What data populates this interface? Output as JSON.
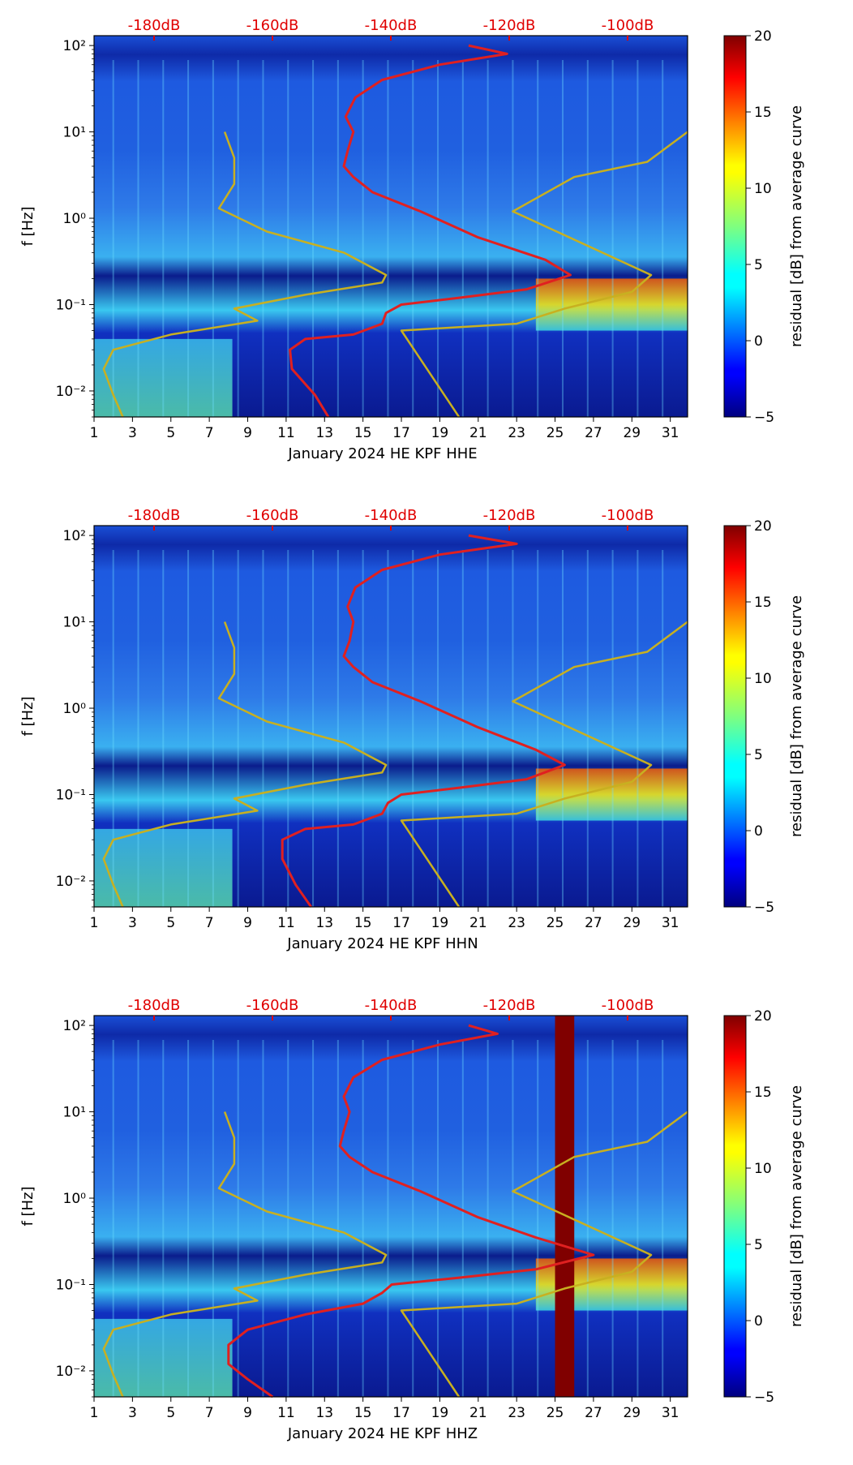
{
  "chart_data": [
    {
      "type": "heatmap",
      "title": "",
      "xlabel": "January 2024 HE KPF  HHE",
      "ylabel": "f [Hz]",
      "x_ticks": [
        "1",
        "3",
        "5",
        "7",
        "9",
        "11",
        "13",
        "15",
        "17",
        "19",
        "21",
        "23",
        "25",
        "27",
        "29",
        "31"
      ],
      "xlim": [
        1,
        31.9
      ],
      "y_ticks": [
        "10⁻²",
        "10⁻¹",
        "10⁰",
        "10¹",
        "10²"
      ],
      "ylim": [
        0.005,
        130
      ],
      "db_ticks": [
        "-180dB",
        "-160dB",
        "-140dB",
        "-120dB",
        "-100dB"
      ],
      "colorbar": {
        "label": "residual [dB] from average curve",
        "ticks": [
          "20",
          "15",
          "10",
          "5",
          "0",
          "−5"
        ],
        "range": [
          -5,
          20
        ]
      },
      "series": [
        {
          "name": "percentile curve",
          "color": "#e02020",
          "points": [
            [
              13.2,
              0.005
            ],
            [
              12.5,
              0.009
            ],
            [
              11.3,
              0.018
            ],
            [
              11.2,
              0.03
            ],
            [
              12,
              0.04
            ],
            [
              14.5,
              0.045
            ],
            [
              16,
              0.06
            ],
            [
              16.2,
              0.08
            ],
            [
              17,
              0.1
            ],
            [
              20,
              0.12
            ],
            [
              23.5,
              0.15
            ],
            [
              25.8,
              0.22
            ],
            [
              24.5,
              0.33
            ],
            [
              21,
              0.6
            ],
            [
              18,
              1.2
            ],
            [
              15.5,
              2
            ],
            [
              14.5,
              3
            ],
            [
              14,
              4
            ],
            [
              14.2,
              6
            ],
            [
              14.5,
              10
            ],
            [
              14.1,
              15
            ],
            [
              14.6,
              25
            ],
            [
              16,
              40
            ],
            [
              19,
              60
            ],
            [
              22.5,
              80
            ],
            [
              20.5,
              100
            ]
          ]
        },
        {
          "name": "NLNM",
          "color": "#c8b020",
          "points": [
            [
              2.5,
              0.005
            ],
            [
              2,
              0.009
            ],
            [
              1.5,
              0.018
            ],
            [
              2,
              0.03
            ],
            [
              5,
              0.045
            ],
            [
              9.5,
              0.065
            ],
            [
              8.3,
              0.09
            ],
            [
              12,
              0.13
            ],
            [
              16,
              0.18
            ],
            [
              16.2,
              0.22
            ],
            [
              14,
              0.4
            ],
            [
              10,
              0.7
            ],
            [
              7.5,
              1.3
            ],
            [
              8.3,
              2.5
            ],
            [
              8.3,
              5
            ],
            [
              7.8,
              10
            ]
          ]
        },
        {
          "name": "NHNM",
          "color": "#c8b020",
          "points": [
            [
              20,
              0.005
            ],
            [
              17,
              0.05
            ],
            [
              23,
              0.06
            ],
            [
              25.5,
              0.09
            ],
            [
              29,
              0.14
            ],
            [
              30,
              0.22
            ],
            [
              22.8,
              1.2
            ],
            [
              26,
              3
            ],
            [
              29.8,
              4.5
            ],
            [
              31.9,
              10
            ]
          ]
        }
      ]
    },
    {
      "type": "heatmap",
      "title": "",
      "xlabel": "January 2024 HE KPF  HHN",
      "ylabel": "f [Hz]",
      "x_ticks": [
        "1",
        "3",
        "5",
        "7",
        "9",
        "11",
        "13",
        "15",
        "17",
        "19",
        "21",
        "23",
        "25",
        "27",
        "29",
        "31"
      ],
      "xlim": [
        1,
        31.9
      ],
      "y_ticks": [
        "10⁻²",
        "10⁻¹",
        "10⁰",
        "10¹",
        "10²"
      ],
      "ylim": [
        0.005,
        130
      ],
      "db_ticks": [
        "-180dB",
        "-160dB",
        "-140dB",
        "-120dB",
        "-100dB"
      ],
      "colorbar": {
        "label": "residual [dB] from average curve",
        "ticks": [
          "20",
          "15",
          "10",
          "5",
          "0",
          "−5"
        ],
        "range": [
          -5,
          20
        ]
      },
      "series": [
        {
          "name": "percentile curve",
          "color": "#e02020",
          "points": [
            [
              12.3,
              0.005
            ],
            [
              11.5,
              0.009
            ],
            [
              10.8,
              0.018
            ],
            [
              10.8,
              0.03
            ],
            [
              12,
              0.04
            ],
            [
              14.5,
              0.045
            ],
            [
              16,
              0.06
            ],
            [
              16.3,
              0.08
            ],
            [
              17,
              0.1
            ],
            [
              20,
              0.12
            ],
            [
              23.5,
              0.15
            ],
            [
              25.5,
              0.22
            ],
            [
              24,
              0.33
            ],
            [
              21,
              0.6
            ],
            [
              18,
              1.2
            ],
            [
              15.5,
              2
            ],
            [
              14.5,
              3
            ],
            [
              14,
              4
            ],
            [
              14.3,
              6
            ],
            [
              14.5,
              10
            ],
            [
              14.2,
              15
            ],
            [
              14.6,
              25
            ],
            [
              16,
              40
            ],
            [
              19,
              60
            ],
            [
              23,
              80
            ],
            [
              20.5,
              100
            ]
          ]
        },
        {
          "name": "NLNM",
          "color": "#c8b020",
          "points": [
            [
              2.5,
              0.005
            ],
            [
              2,
              0.009
            ],
            [
              1.5,
              0.018
            ],
            [
              2,
              0.03
            ],
            [
              5,
              0.045
            ],
            [
              9.5,
              0.065
            ],
            [
              8.3,
              0.09
            ],
            [
              12,
              0.13
            ],
            [
              16,
              0.18
            ],
            [
              16.2,
              0.22
            ],
            [
              14,
              0.4
            ],
            [
              10,
              0.7
            ],
            [
              7.5,
              1.3
            ],
            [
              8.3,
              2.5
            ],
            [
              8.3,
              5
            ],
            [
              7.8,
              10
            ]
          ]
        },
        {
          "name": "NHNM",
          "color": "#c8b020",
          "points": [
            [
              20,
              0.005
            ],
            [
              17,
              0.05
            ],
            [
              23,
              0.06
            ],
            [
              25.5,
              0.09
            ],
            [
              29,
              0.14
            ],
            [
              30,
              0.22
            ],
            [
              22.8,
              1.2
            ],
            [
              26,
              3
            ],
            [
              29.8,
              4.5
            ],
            [
              31.9,
              10
            ]
          ]
        }
      ]
    },
    {
      "type": "heatmap",
      "title": "",
      "xlabel": "January 2024 HE KPF  HHZ",
      "ylabel": "f [Hz]",
      "x_ticks": [
        "1",
        "3",
        "5",
        "7",
        "9",
        "11",
        "13",
        "15",
        "17",
        "19",
        "21",
        "23",
        "25",
        "27",
        "29",
        "31"
      ],
      "xlim": [
        1,
        31.9
      ],
      "y_ticks": [
        "10⁻²",
        "10⁻¹",
        "10⁰",
        "10¹",
        "10²"
      ],
      "ylim": [
        0.005,
        130
      ],
      "db_ticks": [
        "-180dB",
        "-160dB",
        "-140dB",
        "-120dB",
        "-100dB"
      ],
      "colorbar": {
        "label": "residual [dB] from average curve",
        "ticks": [
          "20",
          "15",
          "10",
          "5",
          "0",
          "−5"
        ],
        "range": [
          -5,
          20
        ]
      },
      "series": [
        {
          "name": "percentile curve",
          "color": "#e02020",
          "points": [
            [
              10.3,
              0.005
            ],
            [
              9,
              0.008
            ],
            [
              8,
              0.012
            ],
            [
              8,
              0.02
            ],
            [
              9,
              0.03
            ],
            [
              12,
              0.045
            ],
            [
              15,
              0.06
            ],
            [
              16,
              0.08
            ],
            [
              16.5,
              0.1
            ],
            [
              20,
              0.12
            ],
            [
              24,
              0.15
            ],
            [
              27,
              0.22
            ],
            [
              24,
              0.35
            ],
            [
              21,
              0.6
            ],
            [
              18,
              1.2
            ],
            [
              15.5,
              2
            ],
            [
              14.3,
              3
            ],
            [
              13.8,
              4
            ],
            [
              14,
              6
            ],
            [
              14.3,
              10
            ],
            [
              14,
              15
            ],
            [
              14.5,
              25
            ],
            [
              16,
              40
            ],
            [
              19,
              60
            ],
            [
              22,
              80
            ],
            [
              20.5,
              100
            ]
          ]
        },
        {
          "name": "NLNM",
          "color": "#c8b020",
          "points": [
            [
              2.5,
              0.005
            ],
            [
              2,
              0.009
            ],
            [
              1.5,
              0.018
            ],
            [
              2,
              0.03
            ],
            [
              5,
              0.045
            ],
            [
              9.5,
              0.065
            ],
            [
              8.3,
              0.09
            ],
            [
              12,
              0.13
            ],
            [
              16,
              0.18
            ],
            [
              16.2,
              0.22
            ],
            [
              14,
              0.4
            ],
            [
              10,
              0.7
            ],
            [
              7.5,
              1.3
            ],
            [
              8.3,
              2.5
            ],
            [
              8.3,
              5
            ],
            [
              7.8,
              10
            ]
          ]
        },
        {
          "name": "NHNM",
          "color": "#c8b020",
          "points": [
            [
              20,
              0.005
            ],
            [
              17,
              0.05
            ],
            [
              23,
              0.06
            ],
            [
              25.5,
              0.09
            ],
            [
              29,
              0.14
            ],
            [
              30,
              0.22
            ],
            [
              22.8,
              1.2
            ],
            [
              26,
              3
            ],
            [
              29.8,
              4.5
            ],
            [
              31.9,
              10
            ]
          ]
        }
      ],
      "gap": {
        "from": 25,
        "to": 26,
        "color": "#800000"
      }
    }
  ]
}
